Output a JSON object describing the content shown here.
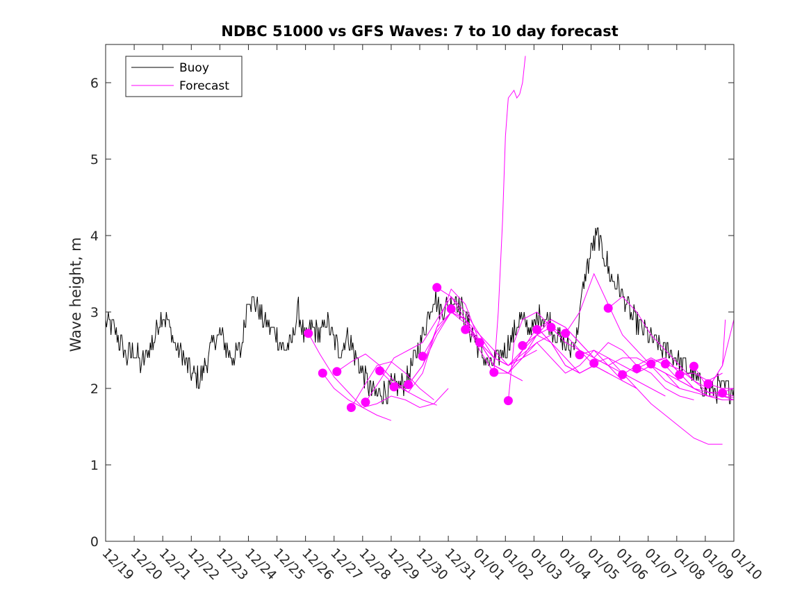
{
  "chart_data": {
    "type": "line",
    "title": "NDBC 51000 vs GFS Waves: 7 to 10 day forecast",
    "ylabel": "Wave height, m",
    "xlabel": "",
    "xlim": [
      0,
      22
    ],
    "ylim": [
      0,
      6.5
    ],
    "yticks": [
      0,
      1,
      2,
      3,
      4,
      5,
      6
    ],
    "xticks": [
      {
        "x": 0,
        "label": "12/19"
      },
      {
        "x": 1,
        "label": "12/20"
      },
      {
        "x": 2,
        "label": "12/21"
      },
      {
        "x": 3,
        "label": "12/22"
      },
      {
        "x": 4,
        "label": "12/23"
      },
      {
        "x": 5,
        "label": "12/24"
      },
      {
        "x": 6,
        "label": "12/25"
      },
      {
        "x": 7,
        "label": "12/26"
      },
      {
        "x": 8,
        "label": "12/27"
      },
      {
        "x": 9,
        "label": "12/28"
      },
      {
        "x": 10,
        "label": "12/29"
      },
      {
        "x": 11,
        "label": "12/30"
      },
      {
        "x": 12,
        "label": "12/31"
      },
      {
        "x": 13,
        "label": "01/01"
      },
      {
        "x": 14,
        "label": "01/02"
      },
      {
        "x": 15,
        "label": "01/03"
      },
      {
        "x": 16,
        "label": "01/04"
      },
      {
        "x": 17,
        "label": "01/05"
      },
      {
        "x": 18,
        "label": "01/06"
      },
      {
        "x": 19,
        "label": "01/07"
      },
      {
        "x": 20,
        "label": "01/08"
      },
      {
        "x": 21,
        "label": "01/09"
      },
      {
        "x": 22,
        "label": "01/10"
      }
    ],
    "legend": {
      "placement": "top-left",
      "entries": [
        {
          "label": "Buoy",
          "color": "#000000"
        },
        {
          "label": "Forecast",
          "color": "#ff00ff"
        }
      ]
    },
    "buoy": {
      "name": "Buoy",
      "color": "#000000",
      "x": [
        0,
        0.25,
        0.5,
        0.75,
        1,
        1.25,
        1.5,
        1.75,
        2,
        2.25,
        2.5,
        2.75,
        3,
        3.25,
        3.5,
        3.75,
        4,
        4.25,
        4.5,
        4.75,
        5,
        5.25,
        5.5,
        5.75,
        6,
        6.25,
        6.5,
        6.75,
        7,
        7.25,
        7.5,
        7.75,
        8,
        8.25,
        8.5,
        8.75,
        9,
        9.25,
        9.5,
        9.75,
        10,
        10.25,
        10.5,
        10.75,
        11,
        11.25,
        11.5,
        11.75,
        12,
        12.25,
        12.5,
        12.75,
        13,
        13.25,
        13.5,
        13.75,
        14,
        14.25,
        14.5,
        14.75,
        15,
        15.25,
        15.5,
        15.75,
        16,
        16.25,
        16.5,
        16.75,
        17,
        17.25,
        17.5,
        17.75,
        18,
        18.25,
        18.5,
        18.75,
        19,
        19.25,
        19.5,
        19.75,
        20,
        20.25,
        20.5,
        20.75,
        21,
        21.25,
        21.5,
        21.75,
        22
      ],
      "y": [
        2.9,
        2.8,
        2.6,
        2.4,
        2.5,
        2.3,
        2.5,
        2.7,
        3.0,
        2.8,
        2.5,
        2.4,
        2.2,
        2.1,
        2.3,
        2.6,
        2.7,
        2.5,
        2.4,
        2.5,
        3.2,
        3.1,
        2.9,
        2.8,
        2.7,
        2.5,
        2.6,
        3.0,
        2.6,
        2.8,
        2.7,
        2.9,
        2.6,
        2.5,
        2.7,
        2.4,
        2.2,
        2.0,
        1.9,
        1.95,
        2.0,
        2.0,
        2.1,
        2.3,
        2.6,
        2.9,
        3.2,
        3.0,
        3.1,
        3.2,
        3.0,
        2.8,
        2.6,
        2.4,
        2.3,
        2.4,
        2.5,
        2.7,
        2.9,
        2.8,
        2.8,
        3.0,
        2.9,
        2.7,
        2.6,
        2.5,
        2.7,
        3.4,
        3.8,
        4.0,
        3.7,
        3.4,
        3.3,
        3.1,
        2.9,
        2.8,
        2.7,
        2.6,
        2.5,
        2.5,
        2.4,
        2.3,
        2.2,
        2.1,
        2.0,
        2.0,
        2.0,
        2.0,
        2.0
      ]
    },
    "forecast": {
      "name": "Forecast",
      "color": "#ff00ff",
      "lines": [
        {
          "x": [
            7.1,
            7.5,
            8.0,
            8.5,
            9.0,
            9.5,
            10.0
          ],
          "y": [
            2.72,
            2.45,
            2.15,
            1.95,
            1.75,
            1.65,
            1.58
          ]
        },
        {
          "x": [
            7.6,
            8.0,
            8.5,
            9.0,
            9.5,
            10.0,
            10.5,
            11.0,
            11.5,
            12.0
          ],
          "y": [
            2.2,
            2.0,
            1.85,
            1.75,
            1.8,
            1.9,
            1.85,
            1.75,
            1.8,
            2.0
          ]
        },
        {
          "x": [
            8.1,
            8.6,
            9.1,
            9.6,
            10.1,
            10.6,
            11.1,
            11.6
          ],
          "y": [
            2.22,
            2.35,
            2.45,
            2.3,
            2.1,
            1.95,
            1.85,
            1.78
          ]
        },
        {
          "x": [
            8.6,
            9.0,
            9.5,
            10.0,
            10.5,
            11.0,
            11.5
          ],
          "y": [
            1.75,
            2.0,
            2.3,
            2.35,
            2.2,
            2.0,
            1.85
          ]
        },
        {
          "x": [
            9.1,
            9.6,
            10.1,
            10.6,
            11.1,
            11.6,
            12.1,
            12.6,
            13.1,
            13.6,
            14.1
          ],
          "y": [
            1.82,
            2.1,
            2.4,
            2.5,
            2.6,
            2.9,
            3.2,
            3.0,
            2.7,
            2.5,
            2.3
          ]
        },
        {
          "x": [
            9.6,
            10.1,
            10.6,
            11.1,
            11.6,
            12.1,
            12.6,
            13.1,
            13.6,
            14.1,
            14.6
          ],
          "y": [
            2.23,
            2.05,
            1.95,
            2.2,
            2.8,
            3.3,
            3.1,
            2.6,
            2.3,
            2.2,
            2.1
          ]
        },
        {
          "x": [
            10.1,
            10.6,
            11.1,
            11.6,
            12.1,
            12.6,
            13.1,
            13.6,
            14.1,
            14.6,
            15.1
          ],
          "y": [
            2.02,
            2.05,
            2.3,
            2.7,
            3.0,
            2.9,
            2.6,
            2.4,
            2.3,
            2.4,
            2.5
          ]
        },
        {
          "x": [
            10.6,
            11.1,
            11.6,
            12.1,
            12.6,
            13.1,
            13.6,
            14.1,
            14.6,
            15.1,
            15.6
          ],
          "y": [
            2.05,
            2.3,
            2.8,
            3.0,
            2.85,
            2.6,
            2.4,
            2.3,
            2.45,
            2.6,
            2.7
          ]
        },
        {
          "x": [
            11.1,
            11.6,
            12.1,
            12.6,
            13.1,
            13.6,
            14.1,
            14.6,
            15.1,
            15.6,
            16.1
          ],
          "y": [
            2.42,
            2.75,
            3.0,
            2.9,
            2.6,
            2.3,
            2.2,
            2.4,
            2.7,
            2.8,
            2.6
          ]
        },
        {
          "x": [
            11.6,
            12.1,
            12.6,
            13.1,
            13.6,
            14.1,
            14.6,
            15.1,
            15.6,
            16.1,
            16.6
          ],
          "y": [
            3.32,
            3.2,
            2.9,
            2.5,
            2.2,
            2.2,
            2.5,
            2.7,
            2.6,
            2.4,
            2.2
          ]
        },
        {
          "x": [
            12.1,
            12.6,
            13.1,
            13.6,
            14.1,
            14.6,
            15.1,
            15.6,
            16.1,
            16.6,
            17.1
          ],
          "y": [
            3.04,
            2.9,
            2.7,
            2.4,
            2.3,
            2.5,
            2.8,
            2.6,
            2.3,
            2.2,
            2.3
          ]
        },
        {
          "x": [
            12.6,
            13.1,
            13.6,
            14.1,
            14.6,
            15.1,
            15.6,
            16.1,
            16.6,
            17.1,
            17.6
          ],
          "y": [
            2.77,
            2.6,
            2.3,
            2.2,
            2.5,
            2.8,
            2.6,
            2.3,
            2.2,
            2.3,
            2.2
          ]
        },
        {
          "x": [
            13.1,
            13.6,
            14.1,
            14.6,
            15.1,
            15.6,
            16.1,
            16.6,
            17.1,
            17.6,
            18.1
          ],
          "y": [
            2.6,
            2.3,
            2.2,
            2.4,
            2.6,
            2.4,
            2.2,
            2.3,
            2.5,
            2.3,
            2.1
          ]
        },
        {
          "x": [
            13.6,
            13.75,
            13.9,
            14.0,
            14.1,
            14.2,
            14.3,
            14.4,
            14.5,
            14.6,
            14.7
          ],
          "y": [
            2.21,
            3.0,
            4.2,
            5.3,
            5.8,
            5.85,
            5.9,
            5.8,
            5.85,
            6.0,
            6.35
          ]
        },
        {
          "x": [
            14.1,
            14.3,
            14.6,
            15.1,
            15.6,
            16.1,
            16.6,
            17.1,
            17.6,
            18.1,
            18.6
          ],
          "y": [
            1.84,
            2.6,
            2.9,
            3.0,
            2.8,
            2.6,
            2.5,
            2.3,
            2.2,
            2.1,
            2.0
          ]
        },
        {
          "x": [
            14.6,
            15.1,
            15.6,
            16.1,
            16.6,
            17.1,
            17.6,
            18.1,
            18.6,
            19.1,
            19.6
          ],
          "y": [
            2.56,
            2.7,
            2.9,
            2.8,
            2.6,
            2.4,
            2.3,
            2.2,
            2.1,
            2.0,
            1.9
          ]
        },
        {
          "x": [
            15.1,
            15.6,
            16.1,
            16.6,
            17.1,
            17.6,
            18.1,
            18.6,
            19.1,
            19.6,
            20.1
          ],
          "y": [
            2.77,
            2.9,
            2.8,
            2.6,
            2.4,
            2.3,
            2.4,
            2.4,
            2.3,
            2.1,
            2.0
          ]
        },
        {
          "x": [
            15.6,
            16.1,
            16.6,
            17.1,
            17.6,
            18.1,
            18.6,
            19.1,
            19.6,
            20.1,
            20.6
          ],
          "y": [
            2.8,
            2.7,
            2.5,
            2.4,
            2.6,
            2.5,
            2.3,
            2.2,
            2.0,
            1.9,
            1.85
          ]
        },
        {
          "x": [
            16.1,
            16.6,
            17.1,
            17.6,
            18.1,
            18.6,
            19.1,
            19.6,
            20.1,
            20.6,
            21.1
          ],
          "y": [
            2.72,
            3.0,
            3.5,
            3.1,
            2.7,
            2.5,
            2.3,
            2.2,
            2.1,
            2.0,
            1.9
          ]
        },
        {
          "x": [
            16.6,
            17.1,
            17.6,
            18.1,
            18.6,
            19.1,
            19.6,
            20.1,
            20.6,
            21.1,
            21.6
          ],
          "y": [
            2.44,
            2.5,
            2.4,
            2.2,
            2.0,
            1.8,
            1.65,
            1.5,
            1.35,
            1.27,
            1.27
          ]
        },
        {
          "x": [
            17.1,
            17.6,
            18.1,
            18.6,
            19.1,
            19.6,
            20.1,
            20.6,
            21.1,
            21.6,
            22.0
          ],
          "y": [
            2.33,
            2.4,
            2.3,
            2.2,
            2.3,
            2.2,
            2.0,
            1.95,
            1.9,
            1.85,
            1.85
          ]
        },
        {
          "x": [
            17.6,
            18.1,
            18.6,
            19.1,
            19.6,
            20.1,
            20.6,
            21.1,
            21.6,
            22.0
          ],
          "y": [
            3.05,
            3.2,
            3.0,
            2.7,
            2.5,
            2.3,
            2.1,
            1.95,
            1.9,
            1.85
          ]
        },
        {
          "x": [
            18.1,
            18.6,
            19.1,
            19.6,
            20.1,
            20.6,
            21.1,
            21.6,
            22.0
          ],
          "y": [
            2.18,
            2.3,
            2.4,
            2.3,
            2.1,
            2.0,
            1.9,
            1.9,
            1.88
          ]
        },
        {
          "x": [
            18.6,
            19.1,
            19.6,
            20.1,
            20.6,
            21.1,
            21.6,
            22.0
          ],
          "y": [
            2.26,
            2.35,
            2.4,
            2.2,
            2.0,
            1.95,
            1.95,
            2.0
          ]
        },
        {
          "x": [
            19.1,
            19.6,
            20.1,
            20.6,
            21.1,
            21.6,
            22.0
          ],
          "y": [
            2.32,
            2.4,
            2.2,
            2.0,
            1.9,
            1.85,
            1.85
          ]
        },
        {
          "x": [
            19.6,
            20.1,
            20.6,
            21.1,
            21.6,
            22.0
          ],
          "y": [
            2.32,
            2.25,
            2.1,
            2.0,
            2.3,
            2.9
          ]
        },
        {
          "x": [
            20.1,
            20.6,
            21.1,
            21.6
          ],
          "y": [
            2.18,
            2.2,
            2.1,
            2.2
          ]
        },
        {
          "x": [
            20.6,
            21.1,
            21.6,
            21.7
          ],
          "y": [
            2.29,
            2.0,
            2.3,
            2.9
          ]
        },
        {
          "x": [
            21.1,
            21.6,
            22.0
          ],
          "y": [
            2.06,
            2.0,
            2.0
          ]
        },
        {
          "x": [
            21.6,
            22.0
          ],
          "y": [
            1.94,
            1.9
          ]
        }
      ],
      "markers": [
        {
          "x": 7.1,
          "y": 2.72
        },
        {
          "x": 7.6,
          "y": 2.2
        },
        {
          "x": 8.1,
          "y": 2.22
        },
        {
          "x": 8.6,
          "y": 1.75
        },
        {
          "x": 9.1,
          "y": 1.82
        },
        {
          "x": 9.6,
          "y": 2.23
        },
        {
          "x": 10.1,
          "y": 2.02
        },
        {
          "x": 10.6,
          "y": 2.05
        },
        {
          "x": 11.1,
          "y": 2.42
        },
        {
          "x": 11.6,
          "y": 3.32
        },
        {
          "x": 12.1,
          "y": 3.04
        },
        {
          "x": 12.6,
          "y": 2.77
        },
        {
          "x": 13.1,
          "y": 2.6
        },
        {
          "x": 13.6,
          "y": 2.21
        },
        {
          "x": 14.1,
          "y": 1.84
        },
        {
          "x": 14.6,
          "y": 2.56
        },
        {
          "x": 15.1,
          "y": 2.77
        },
        {
          "x": 15.6,
          "y": 2.8
        },
        {
          "x": 16.1,
          "y": 2.72
        },
        {
          "x": 16.6,
          "y": 2.44
        },
        {
          "x": 17.1,
          "y": 2.33
        },
        {
          "x": 17.6,
          "y": 3.05
        },
        {
          "x": 18.1,
          "y": 2.18
        },
        {
          "x": 18.6,
          "y": 2.26
        },
        {
          "x": 19.1,
          "y": 2.32
        },
        {
          "x": 19.6,
          "y": 2.32
        },
        {
          "x": 20.1,
          "y": 2.18
        },
        {
          "x": 20.6,
          "y": 2.29
        },
        {
          "x": 21.1,
          "y": 2.06
        },
        {
          "x": 21.6,
          "y": 1.94
        }
      ]
    }
  }
}
